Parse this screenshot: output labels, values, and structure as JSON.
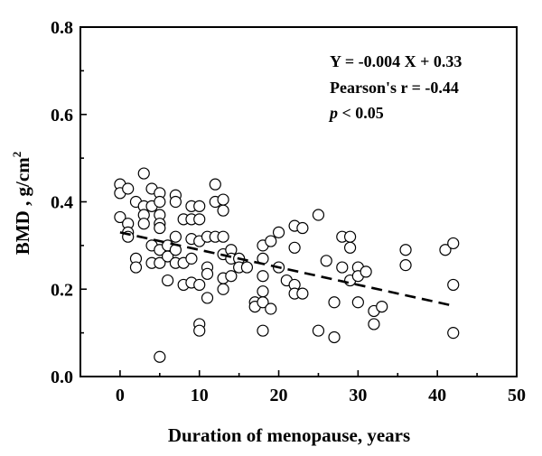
{
  "chart_data": {
    "type": "scatter",
    "xlabel": "Duration of menopause, years",
    "ylabel_main": "BMD , g/cm",
    "ylabel_sup": "2",
    "xlim": [
      -5,
      50
    ],
    "ylim": [
      0.0,
      0.8
    ],
    "x_ticks": [
      0,
      10,
      20,
      30,
      40,
      50
    ],
    "y_ticks": [
      "0.0",
      "0.2",
      "0.4",
      "0.6",
      "0.8"
    ],
    "annotations": {
      "equation": "Y = -0.004 X + 0.33",
      "pearson": "Pearson's r = -0.44",
      "p_italic": "p",
      "p_rest": " < 0.05"
    },
    "regression": {
      "slope": -0.004,
      "intercept": 0.33,
      "x_range": [
        0,
        42
      ]
    },
    "points": [
      [
        0,
        0.44
      ],
      [
        0,
        0.42
      ],
      [
        0,
        0.365
      ],
      [
        1,
        0.43
      ],
      [
        1,
        0.35
      ],
      [
        1,
        0.33
      ],
      [
        1,
        0.32
      ],
      [
        2,
        0.4
      ],
      [
        2,
        0.27
      ],
      [
        2,
        0.25
      ],
      [
        3,
        0.465
      ],
      [
        3,
        0.39
      ],
      [
        3,
        0.37
      ],
      [
        3,
        0.35
      ],
      [
        4,
        0.43
      ],
      [
        4,
        0.39
      ],
      [
        4,
        0.3
      ],
      [
        4,
        0.26
      ],
      [
        5,
        0.42
      ],
      [
        5,
        0.4
      ],
      [
        5,
        0.37
      ],
      [
        5,
        0.35
      ],
      [
        5,
        0.34
      ],
      [
        5,
        0.29
      ],
      [
        5,
        0.26
      ],
      [
        5,
        0.045
      ],
      [
        6,
        0.3
      ],
      [
        6,
        0.275
      ],
      [
        6,
        0.22
      ],
      [
        7,
        0.415
      ],
      [
        7,
        0.4
      ],
      [
        7,
        0.32
      ],
      [
        7,
        0.29
      ],
      [
        7,
        0.26
      ],
      [
        8,
        0.36
      ],
      [
        8,
        0.26
      ],
      [
        8,
        0.21
      ],
      [
        9,
        0.39
      ],
      [
        9,
        0.36
      ],
      [
        9,
        0.315
      ],
      [
        9,
        0.27
      ],
      [
        9,
        0.215
      ],
      [
        10,
        0.39
      ],
      [
        10,
        0.36
      ],
      [
        10,
        0.31
      ],
      [
        10,
        0.21
      ],
      [
        10,
        0.12
      ],
      [
        10,
        0.105
      ],
      [
        11,
        0.32
      ],
      [
        11,
        0.25
      ],
      [
        11,
        0.235
      ],
      [
        11,
        0.18
      ],
      [
        12,
        0.44
      ],
      [
        12,
        0.4
      ],
      [
        12,
        0.32
      ],
      [
        13,
        0.405
      ],
      [
        13,
        0.38
      ],
      [
        13,
        0.32
      ],
      [
        13,
        0.28
      ],
      [
        13,
        0.225
      ],
      [
        13,
        0.2
      ],
      [
        14,
        0.29
      ],
      [
        14,
        0.27
      ],
      [
        14,
        0.23
      ],
      [
        15,
        0.27
      ],
      [
        15,
        0.25
      ],
      [
        16,
        0.25
      ],
      [
        17,
        0.17
      ],
      [
        17,
        0.16
      ],
      [
        18,
        0.3
      ],
      [
        18,
        0.27
      ],
      [
        18,
        0.23
      ],
      [
        18,
        0.195
      ],
      [
        18,
        0.17
      ],
      [
        18,
        0.105
      ],
      [
        19,
        0.31
      ],
      [
        19,
        0.155
      ],
      [
        20,
        0.33
      ],
      [
        20,
        0.25
      ],
      [
        21,
        0.22
      ],
      [
        22,
        0.345
      ],
      [
        22,
        0.295
      ],
      [
        22,
        0.21
      ],
      [
        22,
        0.19
      ],
      [
        23,
        0.34
      ],
      [
        23,
        0.19
      ],
      [
        25,
        0.37
      ],
      [
        25,
        0.105
      ],
      [
        26,
        0.265
      ],
      [
        27,
        0.17
      ],
      [
        27,
        0.09
      ],
      [
        28,
        0.32
      ],
      [
        28,
        0.25
      ],
      [
        29,
        0.32
      ],
      [
        29,
        0.295
      ],
      [
        29,
        0.22
      ],
      [
        30,
        0.25
      ],
      [
        30,
        0.23
      ],
      [
        30,
        0.17
      ],
      [
        31,
        0.24
      ],
      [
        32,
        0.15
      ],
      [
        32,
        0.12
      ],
      [
        33,
        0.16
      ],
      [
        36,
        0.29
      ],
      [
        36,
        0.255
      ],
      [
        41,
        0.29
      ],
      [
        42,
        0.305
      ],
      [
        42,
        0.21
      ],
      [
        42,
        0.1
      ]
    ]
  }
}
